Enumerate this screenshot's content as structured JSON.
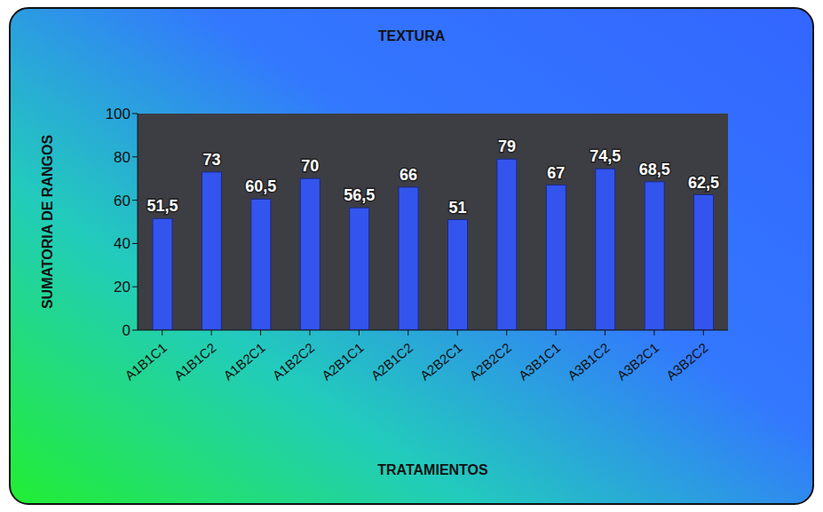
{
  "chart_data": {
    "type": "bar",
    "title": "TEXTURA",
    "x_label": "TRATAMIENTOS",
    "y_label": "SUMATORIA DE RANGOS",
    "categories": [
      "A1B1C1",
      "A1B1C2",
      "A1B2C1",
      "A1B2C2",
      "A2B1C1",
      "A2B1C2",
      "A2B2C1",
      "A2B2C2",
      "A3B1C1",
      "A3B1C2",
      "A3B2C1",
      "A3B2C2"
    ],
    "values": [
      51.5,
      73,
      60.5,
      70,
      56.5,
      66,
      51,
      79,
      67,
      74.5,
      68.5,
      62.5
    ],
    "value_labels": [
      "51,5",
      "73",
      "60,5",
      "70",
      "56,5",
      "66",
      "51",
      "79",
      "67",
      "74,5",
      "68,5",
      "62,5"
    ],
    "color": "#3355ee",
    "ylim": [
      0,
      100
    ],
    "yticks": [
      0,
      20,
      40,
      60,
      80,
      100
    ],
    "grid": false,
    "data_labels": true
  }
}
